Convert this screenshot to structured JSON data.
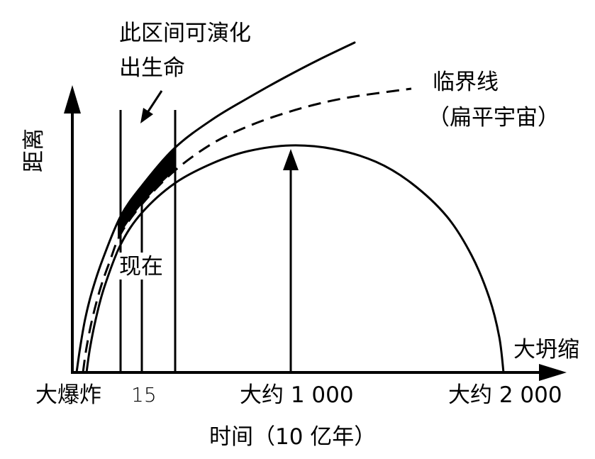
{
  "labels": {
    "y_axis": "距离",
    "x_axis": "时间（10 亿年）",
    "life_region_line1": "此区间可演化",
    "life_region_line2": "出生命",
    "critical_line_line1": "临界线",
    "critical_line_line2": "（扁平宇宙）",
    "now": "现在",
    "big_crunch": "大坍缩"
  },
  "x_ticks": [
    "大爆炸",
    "15",
    "大约 1 000",
    "大约 2 000"
  ],
  "colors": {
    "ink": "#000000",
    "background": "#ffffff"
  }
}
